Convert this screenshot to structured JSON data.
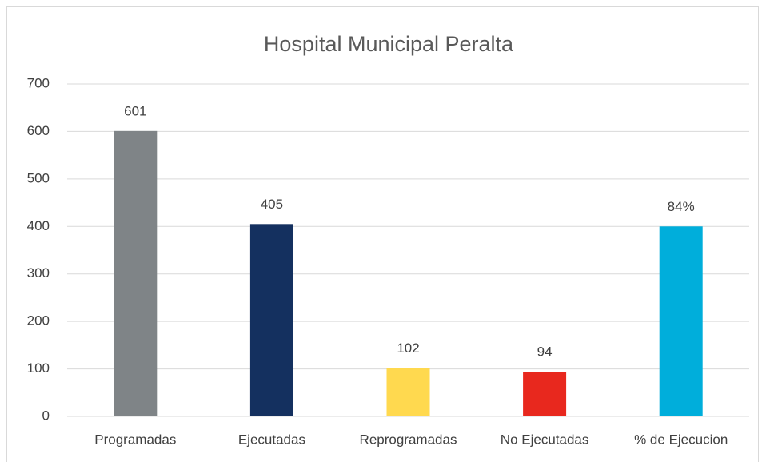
{
  "chart_data": {
    "type": "bar",
    "title": "Hospital Municipal Peralta",
    "categories": [
      "Programadas",
      "Ejecutadas",
      "Reprogramadas",
      "No Ejecutadas",
      "% de Ejecucion"
    ],
    "values": [
      601,
      405,
      102,
      94,
      400
    ],
    "colors": [
      "#7f8487",
      "#14305f",
      "#ffd94f",
      "#e8281e",
      "#00aedb"
    ],
    "annotations": [
      {
        "category": 4,
        "text": "84%"
      }
    ],
    "ylim": [
      0,
      700
    ],
    "yticks": [
      0,
      100,
      200,
      300,
      400,
      500,
      600,
      700
    ],
    "grid": true
  }
}
